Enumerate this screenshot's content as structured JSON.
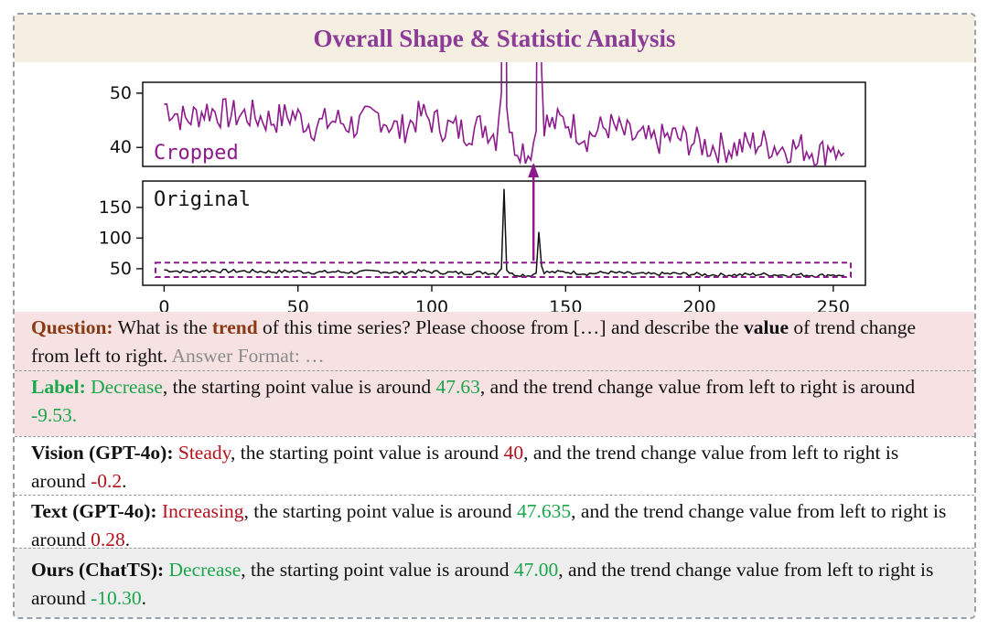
{
  "title": "Overall Shape & Statistic Analysis",
  "chart_data": {
    "type": "line",
    "panels": [
      {
        "name": "Cropped",
        "label": "Cropped",
        "label_color": "#8c1a8c",
        "line_color": "#8c1a8c",
        "yticks": [
          40,
          50
        ],
        "ylim": [
          36.5,
          52
        ],
        "x_range": [
          0,
          255
        ],
        "show_xticks": false
      },
      {
        "name": "Original",
        "label": "Original",
        "label_color": "#111111",
        "line_color": "#111111",
        "yticks": [
          50,
          100,
          150
        ],
        "ylim": [
          23,
          193
        ],
        "x_range": [
          0,
          255
        ],
        "xticks": [
          0,
          50,
          100,
          150,
          200,
          250
        ],
        "xlim": [
          -8,
          262
        ],
        "crop_box_y_range": [
          36.5,
          60
        ],
        "crop_box_color": "#8c1a8c"
      }
    ],
    "series": [
      {
        "name": "time series",
        "x": [
          0,
          8,
          16,
          24,
          32,
          40,
          48,
          56,
          64,
          72,
          80,
          88,
          96,
          104,
          112,
          120,
          124,
          126,
          127,
          128,
          129,
          130,
          134,
          136,
          138,
          139,
          140,
          141,
          142,
          144,
          150,
          158,
          166,
          174,
          182,
          190,
          198,
          206,
          214,
          222,
          230,
          238,
          246,
          250,
          252,
          254
        ],
        "values": [
          48,
          45,
          47,
          46,
          46,
          45,
          46,
          44,
          45,
          44,
          46,
          43,
          46,
          44,
          43,
          44,
          42,
          50,
          180,
          49,
          44,
          41,
          40,
          39,
          41,
          43,
          110,
          55,
          45,
          44,
          45,
          42,
          44,
          42,
          41,
          42,
          41,
          40,
          40,
          41,
          40,
          40,
          39,
          41,
          38,
          39
        ]
      }
    ],
    "annotation_arrow": {
      "x": 138,
      "from": "Original",
      "to": "Cropped",
      "color": "#8c1a8c"
    }
  },
  "qa": {
    "question": {
      "label": "Question:",
      "text1": " What is the ",
      "trend": "trend",
      "text2": " of this time series? Please choose from […] and describe the ",
      "value": "value",
      "text3": " of trend change from left to right. ",
      "format": "Answer Format: …"
    },
    "label": {
      "label": "Label:",
      "answer": " Decrease",
      "t1": ", the starting point value is around ",
      "start": "47.63",
      "t2": ", and the trend change value from left to right is around ",
      "change": "-9.53."
    },
    "vision": {
      "label": "Vision (GPT-4o):",
      "answer": " Steady",
      "t1": ", the starting point value is around ",
      "start": "40",
      "t2": ", and the trend change value from left to right is around ",
      "change": "-0.2",
      "end": "."
    },
    "text": {
      "label": "Text (GPT-4o):",
      "answer": " Increasing",
      "t1": ", the starting point value is around ",
      "start": "47.635",
      "t2": ", and the trend change value from left to right is around ",
      "change": "0.28",
      "end": "."
    },
    "ours": {
      "label": "Ours (ChatTS):",
      "answer": " Decrease",
      "t1": ", the starting point value is around ",
      "start": "47.00",
      "t2": ", and the trend change value from left to right is around ",
      "change": "-10.30",
      "end": "."
    }
  }
}
